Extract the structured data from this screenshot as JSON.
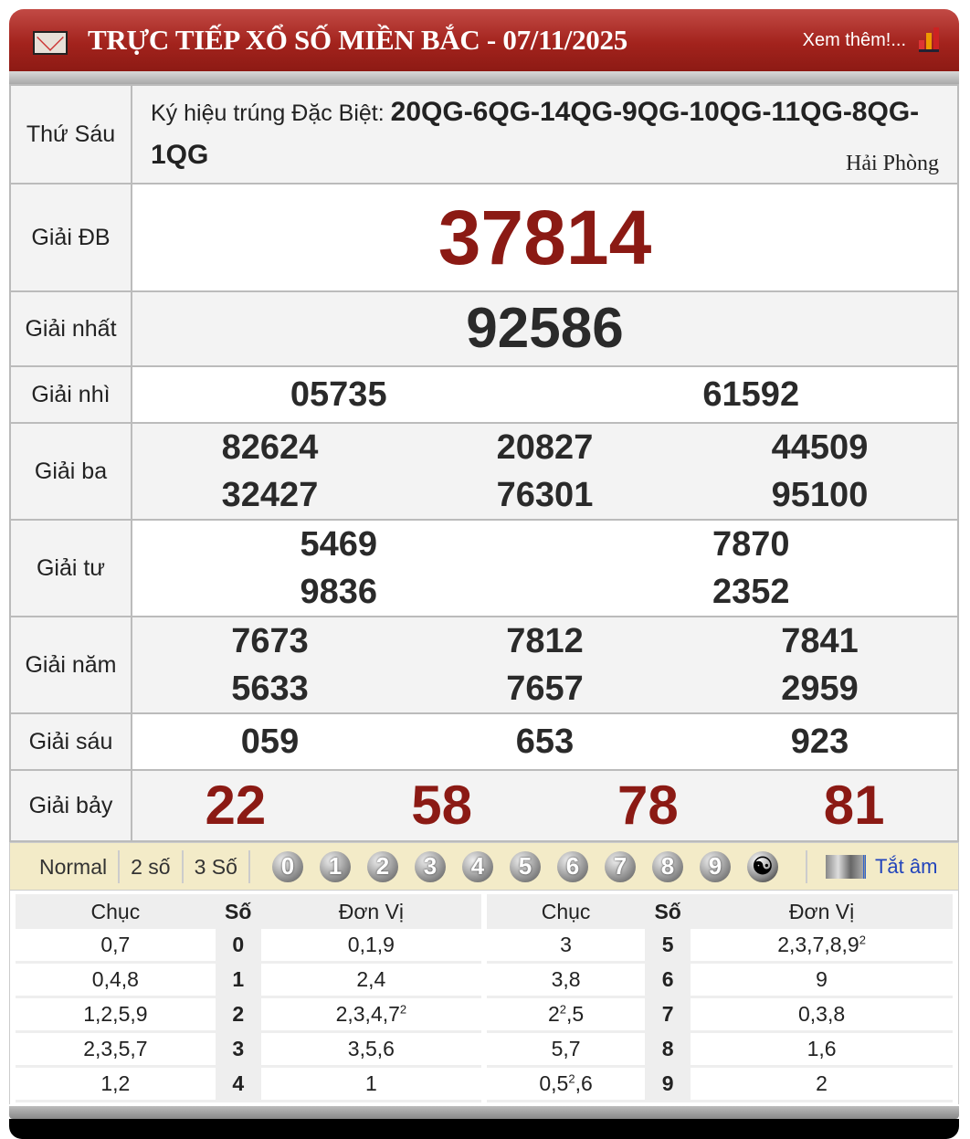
{
  "header": {
    "title": "TRỰC TIẾP XỔ SỐ MIỀN BẮC - 07/11/2025",
    "more_link": "Xem thêm!...",
    "icons": [
      "mail-icon",
      "bar-chart-icon"
    ],
    "bg_color": "#a3231d"
  },
  "info": {
    "day": "Thứ Sáu",
    "symbol_label": "Ký hiệu trúng Đặc Biệt:",
    "symbol_value": "20QG-6QG-14QG-9QG-10QG-11QG-8QG-1QG",
    "province": "Hải Phòng"
  },
  "prizes": [
    {
      "label": "Giải ĐB",
      "numbers": [
        "37814"
      ]
    },
    {
      "label": "Giải nhất",
      "numbers": [
        "92586"
      ]
    },
    {
      "label": "Giải nhì",
      "numbers": [
        "05735",
        "61592"
      ]
    },
    {
      "label": "Giải ba",
      "numbers": [
        "82624",
        "20827",
        "44509",
        "32427",
        "76301",
        "95100"
      ]
    },
    {
      "label": "Giải tư",
      "numbers": [
        "5469",
        "7870",
        "9836",
        "2352"
      ]
    },
    {
      "label": "Giải năm",
      "numbers": [
        "7673",
        "7812",
        "7841",
        "5633",
        "7657",
        "2959"
      ]
    },
    {
      "label": "Giải sáu",
      "numbers": [
        "059",
        "653",
        "923"
      ]
    },
    {
      "label": "Giải bảy",
      "numbers": [
        "22",
        "58",
        "78",
        "81"
      ]
    }
  ],
  "colors": {
    "highlight": "#8b1a14",
    "normal": "#2a2a2a"
  },
  "toolbar": {
    "modes": [
      "Normal",
      "2 số",
      "3 Số"
    ],
    "digits": [
      "0",
      "1",
      "2",
      "3",
      "4",
      "5",
      "6",
      "7",
      "8",
      "9"
    ],
    "mute_label": "Tắt âm",
    "icons": [
      "yin-yang-icon",
      "sound-icon"
    ]
  },
  "loto": {
    "headers": [
      "Chục",
      "Số",
      "Đơn Vị"
    ],
    "rows": [
      {
        "chuc": "0,7",
        "so": "0",
        "donvi": "0,1,9"
      },
      {
        "chuc": "0,4,8",
        "so": "1",
        "donvi": "2,4"
      },
      {
        "chuc": "1,2,5,9",
        "so": "2",
        "donvi": "2,3,4,7^2"
      },
      {
        "chuc": "2,3,5,7",
        "so": "3",
        "donvi": "3,5,6"
      },
      {
        "chuc": "1,2",
        "so": "4",
        "donvi": "1"
      },
      {
        "chuc": "3",
        "so": "5",
        "donvi": "2,3,7,8,9^2"
      },
      {
        "chuc": "3,8",
        "so": "6",
        "donvi": "9"
      },
      {
        "chuc": "2^2,5",
        "so": "7",
        "donvi": "0,3,8"
      },
      {
        "chuc": "5,7",
        "so": "8",
        "donvi": "1,6"
      },
      {
        "chuc": "0,5^2,6",
        "so": "9",
        "donvi": "2"
      }
    ]
  }
}
